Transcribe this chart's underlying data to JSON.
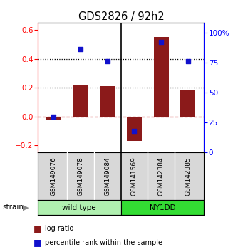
{
  "title": "GDS2826 / 92h2",
  "samples": [
    "GSM149076",
    "GSM149078",
    "GSM149084",
    "GSM141569",
    "GSM142384",
    "GSM142385"
  ],
  "log_ratio": [
    -0.02,
    0.22,
    0.21,
    -0.17,
    0.55,
    0.18
  ],
  "pct_rank": [
    30,
    86,
    76,
    18,
    92,
    76
  ],
  "strain_labels": [
    "wild type",
    "NY1DD"
  ],
  "strain_groups": [
    3,
    3
  ],
  "wt_color": "#b0f0b0",
  "ny_color": "#33dd33",
  "bar_color": "#8b1a1a",
  "dot_color": "#1111cc",
  "ylim_left": [
    -0.25,
    0.65
  ],
  "ylim_right": [
    0,
    108.33
  ],
  "yticks_left": [
    -0.2,
    0.0,
    0.2,
    0.4,
    0.6
  ],
  "yticks_right": [
    0,
    25,
    50,
    75,
    100
  ],
  "hlines": [
    0.2,
    0.4
  ],
  "bg_color": "#d8d8d8",
  "plot_bg": "#ffffff",
  "legend_labels": [
    "log ratio",
    "percentile rank within the sample"
  ]
}
